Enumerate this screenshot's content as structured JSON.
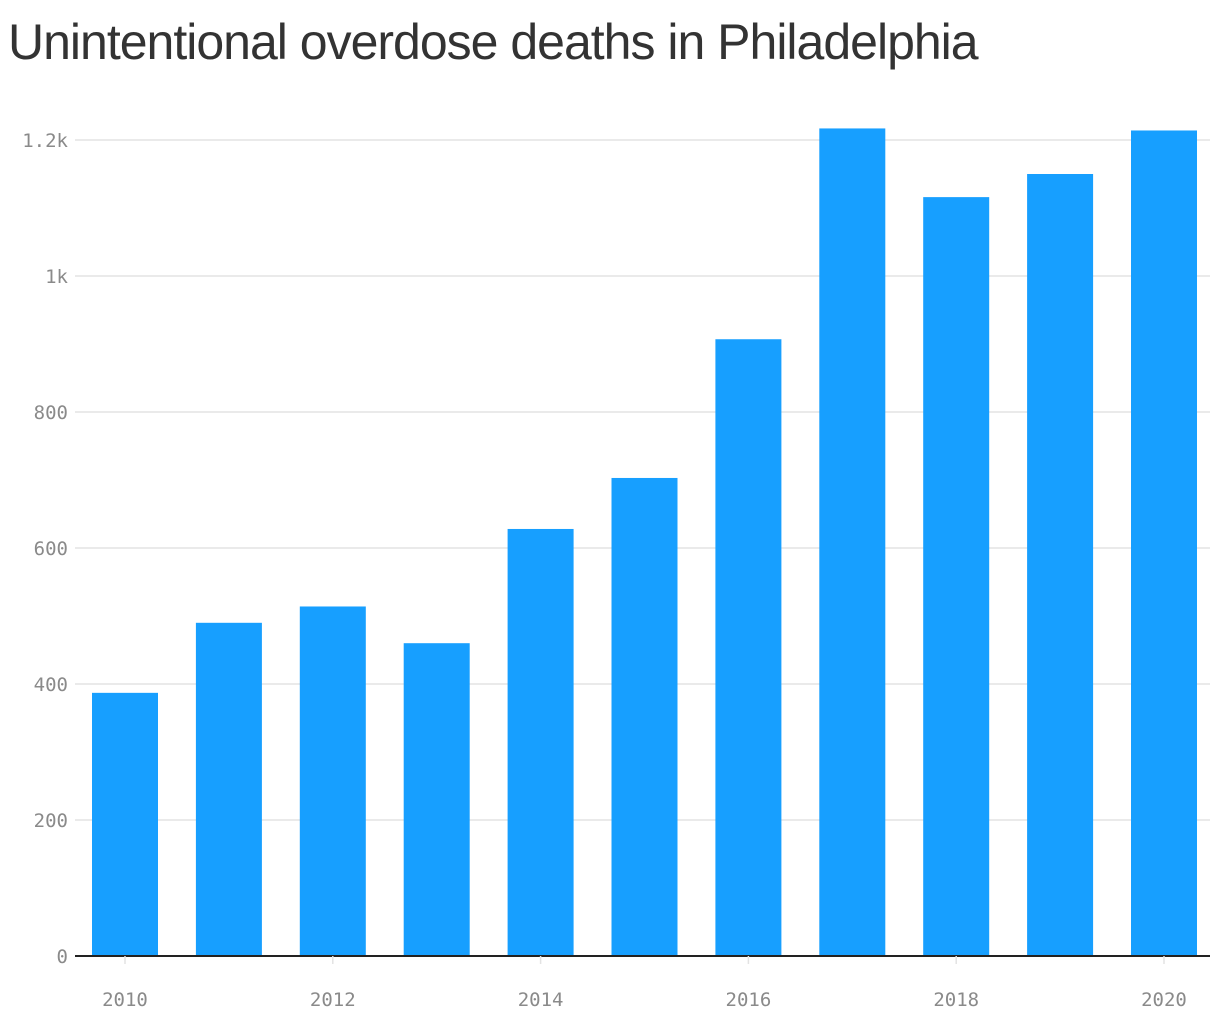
{
  "chart_data": {
    "type": "bar",
    "title": "Unintentional overdose deaths in Philadelphia",
    "categories": [
      "2010",
      "2011",
      "2012",
      "2013",
      "2014",
      "2015",
      "2016",
      "2017",
      "2018",
      "2019",
      "2020"
    ],
    "values": [
      387,
      490,
      514,
      460,
      628,
      703,
      907,
      1217,
      1116,
      1150,
      1214
    ],
    "xlabel": "",
    "ylabel": "",
    "ylim": [
      0,
      1200
    ],
    "y_ticks": [
      {
        "value": 0,
        "label": "0"
      },
      {
        "value": 200,
        "label": "200"
      },
      {
        "value": 400,
        "label": "400"
      },
      {
        "value": 600,
        "label": "600"
      },
      {
        "value": 800,
        "label": "800"
      },
      {
        "value": 1000,
        "label": "1k"
      },
      {
        "value": 1200,
        "label": "1.2k"
      }
    ],
    "x_tick_labels": [
      "2010",
      "2012",
      "2014",
      "2016",
      "2018",
      "2020"
    ],
    "grid": true,
    "bar_color": "#179fff",
    "grid_color": "#e3e3e3",
    "axis_color": "#222222",
    "tick_label_color": "#8a8a8a",
    "title_color": "#333333"
  }
}
